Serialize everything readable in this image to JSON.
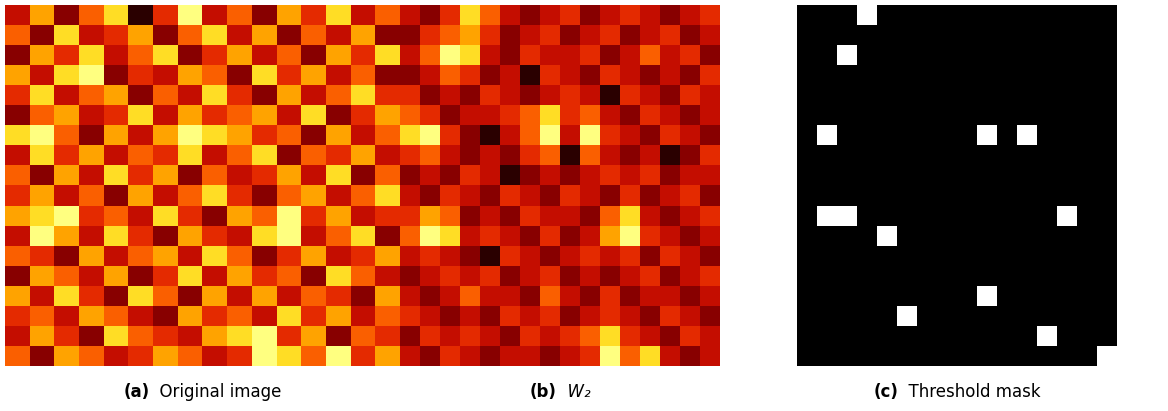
{
  "chart_data": [
    {
      "type": "image",
      "label": "(a)",
      "title": "Original image",
      "tick_labels": false,
      "cells": [
        [
          3,
          6,
          2,
          5,
          7,
          1,
          4,
          8,
          3,
          5,
          2,
          6,
          4,
          7,
          3,
          5
        ],
        [
          5,
          2,
          7,
          3,
          4,
          6,
          2,
          5,
          7,
          3,
          6,
          2,
          5,
          3,
          6,
          2
        ],
        [
          2,
          6,
          4,
          7,
          3,
          5,
          7,
          2,
          4,
          6,
          3,
          5,
          2,
          6,
          4,
          7
        ],
        [
          6,
          3,
          7,
          8,
          2,
          4,
          3,
          6,
          5,
          2,
          7,
          4,
          6,
          3,
          5,
          2
        ],
        [
          4,
          7,
          3,
          5,
          6,
          2,
          5,
          3,
          7,
          4,
          2,
          6,
          3,
          5,
          7,
          4
        ],
        [
          2,
          5,
          6,
          3,
          4,
          7,
          3,
          6,
          4,
          5,
          6,
          3,
          7,
          2,
          4,
          6
        ],
        [
          7,
          8,
          5,
          2,
          6,
          3,
          6,
          8,
          7,
          6,
          4,
          5,
          2,
          6,
          3,
          5
        ],
        [
          3,
          7,
          4,
          6,
          3,
          5,
          4,
          7,
          3,
          5,
          7,
          2,
          5,
          4,
          6,
          3
        ],
        [
          5,
          2,
          6,
          3,
          7,
          4,
          6,
          2,
          5,
          3,
          4,
          6,
          3,
          7,
          2,
          5
        ],
        [
          4,
          6,
          3,
          5,
          2,
          6,
          3,
          5,
          7,
          4,
          2,
          5,
          6,
          3,
          5,
          7
        ],
        [
          6,
          7,
          8,
          4,
          5,
          3,
          7,
          4,
          2,
          6,
          5,
          8,
          4,
          6,
          3,
          4
        ],
        [
          3,
          8,
          6,
          3,
          7,
          4,
          2,
          6,
          4,
          3,
          7,
          8,
          3,
          5,
          7,
          2
        ],
        [
          5,
          4,
          2,
          6,
          3,
          5,
          6,
          3,
          7,
          5,
          2,
          4,
          6,
          3,
          4,
          6
        ],
        [
          2,
          6,
          5,
          3,
          6,
          2,
          4,
          7,
          3,
          6,
          4,
          5,
          2,
          7,
          5,
          3
        ],
        [
          6,
          3,
          7,
          4,
          2,
          7,
          5,
          2,
          6,
          3,
          6,
          3,
          5,
          4,
          2,
          6
        ],
        [
          4,
          5,
          3,
          6,
          5,
          3,
          2,
          6,
          4,
          5,
          3,
          7,
          4,
          6,
          3,
          5
        ],
        [
          3,
          6,
          4,
          2,
          7,
          5,
          4,
          3,
          6,
          7,
          8,
          4,
          6,
          2,
          5,
          4
        ],
        [
          5,
          2,
          6,
          5,
          3,
          4,
          6,
          5,
          3,
          4,
          8,
          7,
          5,
          8,
          4,
          6
        ]
      ]
    },
    {
      "type": "image",
      "label": "(b)",
      "title": "W₂",
      "tick_labels": false,
      "cells": [
        [
          4,
          3,
          5,
          8,
          6,
          4,
          3,
          4,
          5,
          3,
          4,
          5,
          4,
          3,
          4,
          5
        ],
        [
          3,
          5,
          6,
          7,
          5,
          3,
          4,
          5,
          3,
          4,
          5,
          3,
          4,
          5,
          3,
          4
        ],
        [
          4,
          6,
          9,
          8,
          4,
          3,
          5,
          4,
          4,
          5,
          3,
          4,
          6,
          4,
          5,
          3
        ],
        [
          3,
          4,
          6,
          5,
          3,
          4,
          2,
          5,
          4,
          3,
          5,
          4,
          3,
          4,
          3,
          5
        ],
        [
          5,
          3,
          4,
          3,
          5,
          4,
          3,
          4,
          5,
          4,
          2,
          5,
          4,
          3,
          5,
          4
        ],
        [
          6,
          5,
          3,
          4,
          4,
          5,
          6,
          8,
          5,
          6,
          4,
          3,
          5,
          4,
          3,
          4
        ],
        [
          8,
          9,
          5,
          3,
          2,
          4,
          6,
          9,
          4,
          9,
          5,
          4,
          3,
          5,
          4,
          3
        ],
        [
          5,
          6,
          4,
          3,
          4,
          3,
          5,
          6,
          2,
          6,
          4,
          3,
          4,
          2,
          3,
          5
        ],
        [
          3,
          4,
          3,
          5,
          4,
          2,
          3,
          4,
          3,
          4,
          5,
          4,
          5,
          3,
          4,
          4
        ],
        [
          4,
          3,
          5,
          4,
          3,
          5,
          4,
          3,
          5,
          4,
          3,
          5,
          3,
          4,
          5,
          3
        ],
        [
          5,
          7,
          6,
          3,
          4,
          3,
          5,
          4,
          4,
          3,
          6,
          8,
          4,
          3,
          4,
          5
        ],
        [
          6,
          9,
          8,
          4,
          5,
          4,
          3,
          5,
          3,
          4,
          7,
          9,
          5,
          4,
          3,
          4
        ],
        [
          4,
          5,
          4,
          3,
          2,
          5,
          4,
          3,
          4,
          5,
          4,
          5,
          3,
          5,
          4,
          3
        ],
        [
          3,
          4,
          5,
          4,
          5,
          3,
          4,
          5,
          3,
          4,
          3,
          4,
          5,
          3,
          4,
          5
        ],
        [
          4,
          3,
          4,
          6,
          4,
          4,
          3,
          6,
          4,
          3,
          5,
          3,
          4,
          4,
          3,
          4
        ],
        [
          5,
          4,
          3,
          4,
          3,
          5,
          4,
          5,
          3,
          4,
          5,
          4,
          3,
          5,
          4,
          3
        ],
        [
          3,
          5,
          4,
          5,
          4,
          3,
          5,
          4,
          5,
          6,
          8,
          5,
          4,
          3,
          5,
          4
        ],
        [
          4,
          3,
          5,
          4,
          3,
          4,
          4,
          3,
          4,
          5,
          9,
          6,
          8,
          4,
          3,
          4
        ]
      ]
    },
    {
      "type": "mask",
      "label": "(c)",
      "title": "Threshold mask",
      "tick_labels": false,
      "cells": [
        [
          0,
          0,
          0,
          1,
          0,
          0,
          0,
          0,
          0,
          0,
          0,
          0,
          0,
          0,
          0,
          0
        ],
        [
          0,
          0,
          0,
          0,
          0,
          0,
          0,
          0,
          0,
          0,
          0,
          0,
          0,
          0,
          0,
          0
        ],
        [
          0,
          0,
          1,
          0,
          0,
          0,
          0,
          0,
          0,
          0,
          0,
          0,
          0,
          0,
          0,
          0
        ],
        [
          0,
          0,
          0,
          0,
          0,
          0,
          0,
          0,
          0,
          0,
          0,
          0,
          0,
          0,
          0,
          0
        ],
        [
          0,
          0,
          0,
          0,
          0,
          0,
          0,
          0,
          0,
          0,
          0,
          0,
          0,
          0,
          0,
          0
        ],
        [
          0,
          0,
          0,
          0,
          0,
          0,
          0,
          0,
          0,
          0,
          0,
          0,
          0,
          0,
          0,
          0
        ],
        [
          0,
          1,
          0,
          0,
          0,
          0,
          0,
          0,
          0,
          1,
          0,
          1,
          0,
          0,
          0,
          0
        ],
        [
          0,
          0,
          0,
          0,
          0,
          0,
          0,
          0,
          0,
          0,
          0,
          0,
          0,
          0,
          0,
          0
        ],
        [
          0,
          0,
          0,
          0,
          0,
          0,
          0,
          0,
          0,
          0,
          0,
          0,
          0,
          0,
          0,
          0
        ],
        [
          0,
          0,
          0,
          0,
          0,
          0,
          0,
          0,
          0,
          0,
          0,
          0,
          0,
          0,
          0,
          0
        ],
        [
          0,
          1,
          1,
          0,
          0,
          0,
          0,
          0,
          0,
          0,
          0,
          0,
          0,
          1,
          0,
          0
        ],
        [
          0,
          0,
          0,
          0,
          1,
          0,
          0,
          0,
          0,
          0,
          0,
          0,
          0,
          0,
          0,
          0
        ],
        [
          0,
          0,
          0,
          0,
          0,
          0,
          0,
          0,
          0,
          0,
          0,
          0,
          0,
          0,
          0,
          0
        ],
        [
          0,
          0,
          0,
          0,
          0,
          0,
          0,
          0,
          0,
          0,
          0,
          0,
          0,
          0,
          0,
          0
        ],
        [
          0,
          0,
          0,
          0,
          0,
          0,
          0,
          0,
          0,
          1,
          0,
          0,
          0,
          0,
          0,
          0
        ],
        [
          0,
          0,
          0,
          0,
          0,
          1,
          0,
          0,
          0,
          0,
          0,
          0,
          0,
          0,
          0,
          0
        ],
        [
          0,
          0,
          0,
          0,
          0,
          0,
          0,
          0,
          0,
          0,
          0,
          0,
          1,
          0,
          0,
          0
        ],
        [
          0,
          0,
          0,
          0,
          0,
          0,
          0,
          0,
          0,
          0,
          0,
          0,
          0,
          0,
          0,
          1
        ]
      ]
    }
  ]
}
